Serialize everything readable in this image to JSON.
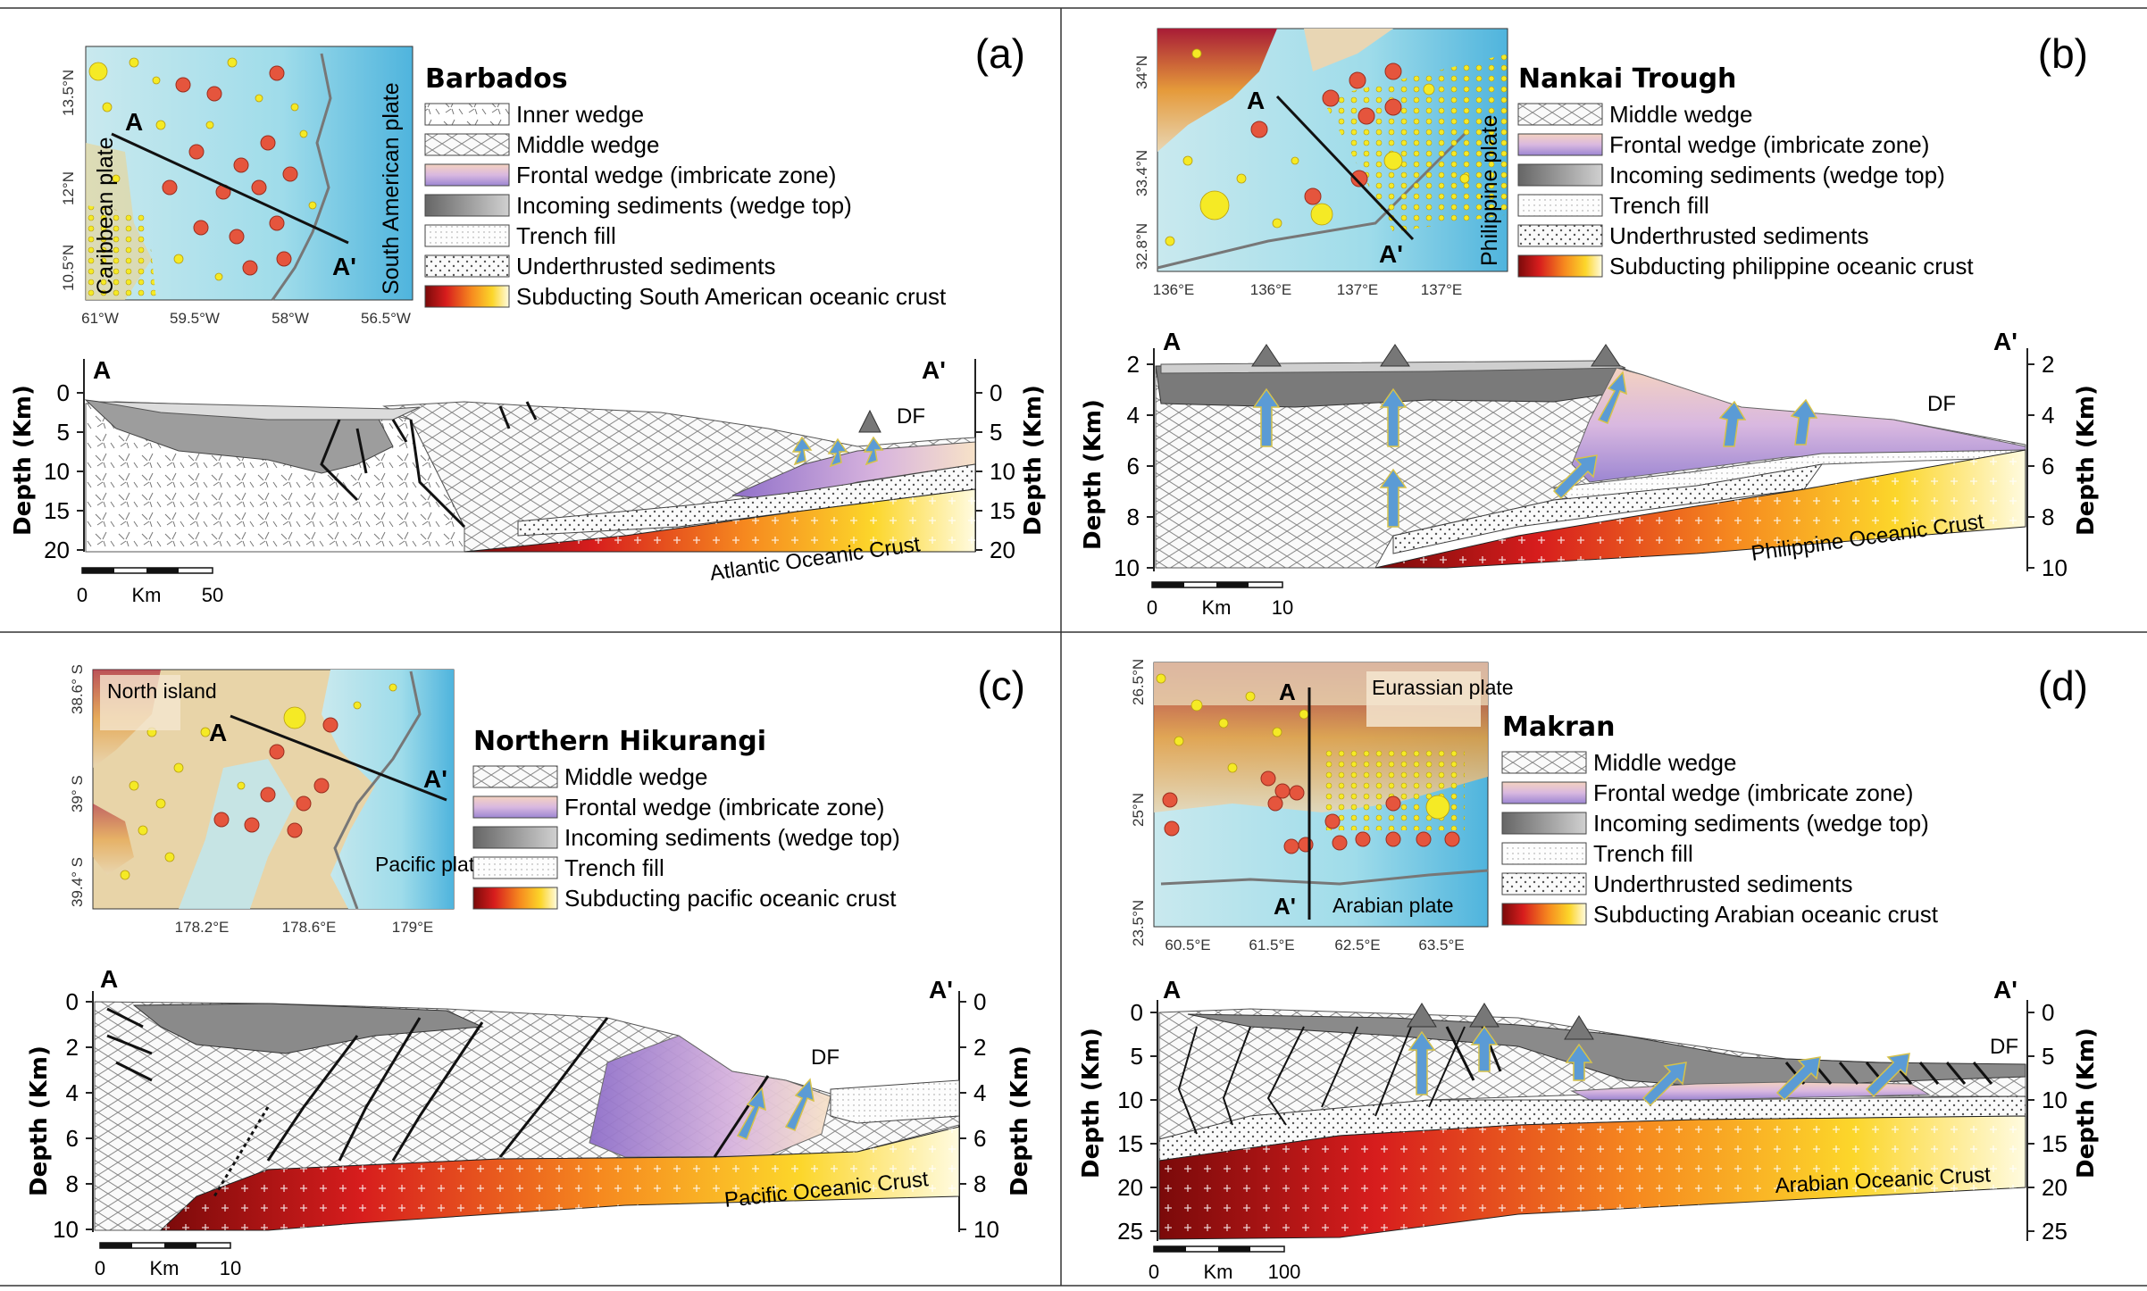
{
  "panels": [
    {
      "id": "a",
      "label": "(a)",
      "title": "Barbados",
      "map": {
        "lat_ticks": [
          "13.5°N",
          "12°N",
          "10.5°N"
        ],
        "lon_ticks": [
          "61°W",
          "59.5°W",
          "58°W",
          "56.5°W"
        ],
        "plate_left": "Caribbean plate",
        "plate_right": "South American plate",
        "section_start": "A",
        "section_end": "A'"
      },
      "legend": [
        "Inner wedge",
        "Middle wedge",
        "Frontal wedge (imbricate zone)",
        "Incoming sediments (wedge top)",
        "Trench fill",
        "Underthrusted sediments",
        "Subducting South American oceanic crust"
      ],
      "section": {
        "left_label": "A",
        "right_label": "A'",
        "axis_title": "Depth (Km)",
        "depth_ticks": [
          "0",
          "5",
          "10",
          "15",
          "20"
        ],
        "crust_label": "Atlantic Oceanic Crust",
        "df_label": "DF",
        "scale": [
          "0",
          "Km",
          "50"
        ]
      }
    },
    {
      "id": "b",
      "label": "(b)",
      "title": "Nankai Trough",
      "map": {
        "lat_ticks": [
          "34°N",
          "33.4°N",
          "32.8°N"
        ],
        "lon_ticks": [
          "136°E",
          "136°E",
          "137°E",
          "137°E"
        ],
        "plate_right": "Philippine plate",
        "section_start": "A",
        "section_end": "A'"
      },
      "legend": [
        "Middle wedge",
        "Frontal wedge (imbricate zone)",
        "Incoming sediments (wedge top)",
        "Trench fill",
        "Underthrusted sediments",
        "Subducting philippine oceanic crust"
      ],
      "section": {
        "left_label": "A",
        "right_label": "A'",
        "axis_title": "Depth (Km)",
        "depth_ticks": [
          "2",
          "4",
          "6",
          "8",
          "10"
        ],
        "crust_label": "Philippine Oceanic Crust",
        "df_label": "DF",
        "scale": [
          "0",
          "Km",
          "10"
        ]
      }
    },
    {
      "id": "c",
      "label": "(c)",
      "title": "Northern Hikurangi",
      "map": {
        "lat_ticks": [
          "38.6° S",
          "39° S",
          "39.4° S"
        ],
        "lon_ticks": [
          "178.2°E",
          "178.6°E",
          "179°E"
        ],
        "plate_left": "North island",
        "plate_right": "Pacific plate",
        "section_start": "A",
        "section_end": "A'"
      },
      "legend": [
        "Middle wedge",
        "Frontal wedge (imbricate zone)",
        "Incoming sediments (wedge top)",
        "Trench fill",
        "Subducting pacific oceanic crust"
      ],
      "section": {
        "left_label": "A",
        "right_label": "A'",
        "axis_title": "Depth (Km)",
        "depth_ticks": [
          "0",
          "2",
          "4",
          "6",
          "8",
          "10"
        ],
        "crust_label": "Pacific Oceanic Crust",
        "df_label": "DF",
        "scale": [
          "0",
          "Km",
          "10"
        ]
      }
    },
    {
      "id": "d",
      "label": "(d)",
      "title": "Makran",
      "map": {
        "lat_ticks": [
          "26.5°N",
          "25°N",
          "23.5°N"
        ],
        "lon_ticks": [
          "60.5°E",
          "61.5°E",
          "62.5°E",
          "63.5°E"
        ],
        "plate_top": "Eurassian plate",
        "plate_bottom": "Arabian plate",
        "section_start": "A",
        "section_end": "A'"
      },
      "legend": [
        "Middle wedge",
        "Frontal wedge (imbricate zone)",
        "Incoming sediments (wedge top)",
        "Trench fill",
        "Underthrusted sediments",
        "Subducting Arabian oceanic crust"
      ],
      "section": {
        "left_label": "A",
        "right_label": "A'",
        "axis_title": "Depth (Km)",
        "depth_ticks": [
          "0",
          "5",
          "10",
          "15",
          "20",
          "25"
        ],
        "crust_label": "Arabian Oceanic Crust",
        "df_label": "DF",
        "scale": [
          "0",
          "Km",
          "100"
        ]
      }
    }
  ]
}
